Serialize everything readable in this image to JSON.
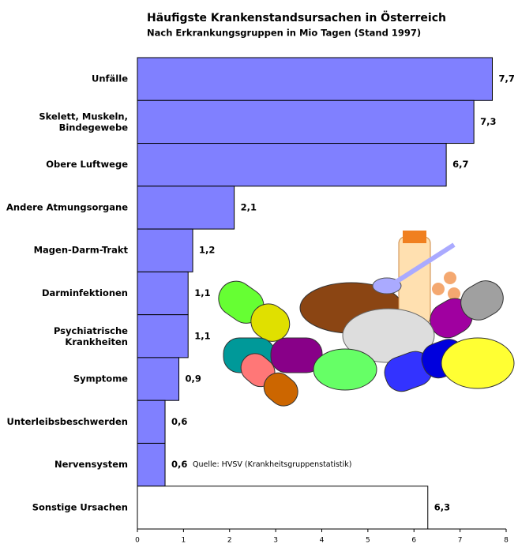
{
  "chart_data": {
    "type": "barh",
    "title": "Häufigste Krankenstandsursachen in Österreich",
    "subtitle": "Nach Erkrankungsgruppen in Mio Tagen (Stand 1997)",
    "categories": [
      "Unfälle",
      "Skelett, Muskeln,\nBindegewebe",
      "Obere Luftwege",
      "Andere Atmungsorgane",
      "Magen-Darm-Trakt",
      "Darminfektionen",
      "Psychiatrische\nKrankheiten",
      "Symptome",
      "Unterleibsbeschwerden",
      "Nervensystem",
      "Sonstige Ursachen"
    ],
    "values": [
      7.7,
      7.3,
      6.7,
      2.1,
      1.2,
      1.1,
      1.1,
      0.9,
      0.6,
      0.6,
      6.3
    ],
    "value_labels": [
      "7,7",
      "7,3",
      "6,7",
      "2,1",
      "1,2",
      "1,1",
      "1,1",
      "0,9",
      "0,6",
      "0,6",
      "6,3"
    ],
    "colors": [
      "#8080ff",
      "#8080ff",
      "#8080ff",
      "#8080ff",
      "#8080ff",
      "#8080ff",
      "#8080ff",
      "#8080ff",
      "#8080ff",
      "#8080ff",
      "#ffffff"
    ],
    "annotation": "Quelle: HVSV (Krankheitsgruppenstatistik)",
    "xlim": [
      0,
      8
    ],
    "xticks": [
      0,
      1,
      2,
      3,
      4,
      5,
      6,
      7,
      8
    ]
  }
}
